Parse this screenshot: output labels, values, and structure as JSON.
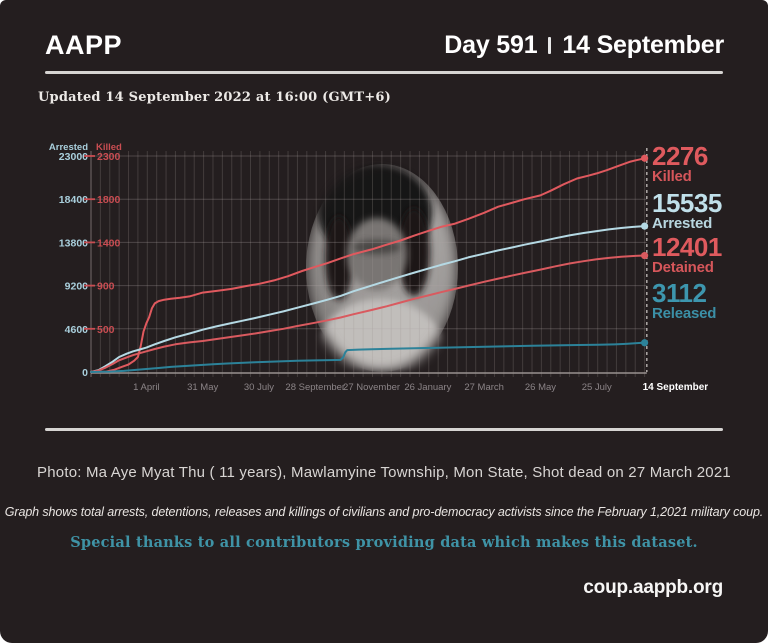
{
  "header": {
    "brand": "AAPP",
    "day_label": "Day 591",
    "date_label": "14 September"
  },
  "updated_line": "Updated 14 September 2022 at 16:00 (GMT+6)",
  "chart_data": {
    "type": "line",
    "title": "",
    "x_axis": {
      "unit": "days since 1 February 2021 military coup",
      "range_days": [
        0,
        590
      ],
      "grid_interval_days": 10,
      "ticks": [
        {
          "day": 59,
          "label": "1 April"
        },
        {
          "day": 119,
          "label": "31 May"
        },
        {
          "day": 179,
          "label": "30 July"
        },
        {
          "day": 239,
          "label": "28 September"
        },
        {
          "day": 299,
          "label": "27 November"
        },
        {
          "day": 359,
          "label": "26 January"
        },
        {
          "day": 419,
          "label": "27 March"
        },
        {
          "day": 479,
          "label": "26 May"
        },
        {
          "day": 539,
          "label": "25 July"
        },
        {
          "day": 590,
          "label": "14 September",
          "emphasis": true
        }
      ]
    },
    "y_left": {
      "title": "Arrested",
      "max": 23000,
      "color": "#a9cfdc",
      "ticks": [
        {
          "v": 0,
          "label": "0"
        },
        {
          "v": 4600,
          "label": "4600"
        },
        {
          "v": 9200,
          "label": "9200"
        },
        {
          "v": 13800,
          "label": "13800"
        },
        {
          "v": 18400,
          "label": "18400"
        },
        {
          "v": 23000,
          "label": "23000"
        }
      ]
    },
    "y_right": {
      "title": "Killed",
      "max": 2300,
      "color": "#c94d52",
      "ticks": [
        {
          "v": 460,
          "label": "500"
        },
        {
          "v": 920,
          "label": "900"
        },
        {
          "v": 1380,
          "label": "1400"
        },
        {
          "v": 1840,
          "label": "1800"
        },
        {
          "v": 2300,
          "label": "2300"
        }
      ]
    },
    "series": [
      {
        "name": "Killed",
        "axis": "right",
        "color": "#e0595e",
        "end_value": 2276,
        "points": [
          [
            0,
            0
          ],
          [
            15,
            2
          ],
          [
            25,
            25
          ],
          [
            33,
            55
          ],
          [
            40,
            80
          ],
          [
            46,
            120
          ],
          [
            50,
            160
          ],
          [
            53,
            275
          ],
          [
            56,
            430
          ],
          [
            59,
            520
          ],
          [
            62,
            585
          ],
          [
            65,
            680
          ],
          [
            68,
            730
          ],
          [
            72,
            755
          ],
          [
            78,
            770
          ],
          [
            85,
            780
          ],
          [
            95,
            790
          ],
          [
            105,
            805
          ],
          [
            119,
            845
          ],
          [
            135,
            865
          ],
          [
            150,
            885
          ],
          [
            165,
            915
          ],
          [
            180,
            940
          ],
          [
            195,
            975
          ],
          [
            210,
            1020
          ],
          [
            225,
            1075
          ],
          [
            239,
            1120
          ],
          [
            252,
            1160
          ],
          [
            266,
            1210
          ],
          [
            280,
            1255
          ],
          [
            299,
            1305
          ],
          [
            315,
            1355
          ],
          [
            330,
            1400
          ],
          [
            345,
            1455
          ],
          [
            359,
            1500
          ],
          [
            373,
            1545
          ],
          [
            388,
            1580
          ],
          [
            402,
            1630
          ],
          [
            419,
            1695
          ],
          [
            434,
            1760
          ],
          [
            448,
            1800
          ],
          [
            462,
            1840
          ],
          [
            479,
            1880
          ],
          [
            490,
            1930
          ],
          [
            504,
            2000
          ],
          [
            518,
            2060
          ],
          [
            530,
            2090
          ],
          [
            539,
            2115
          ],
          [
            550,
            2150
          ],
          [
            562,
            2195
          ],
          [
            575,
            2240
          ],
          [
            583,
            2260
          ],
          [
            590,
            2276
          ]
        ]
      },
      {
        "name": "Arrested",
        "axis": "left",
        "color": "#b5d9e4",
        "end_value": 15535,
        "points": [
          [
            0,
            0
          ],
          [
            8,
            200
          ],
          [
            15,
            600
          ],
          [
            23,
            1100
          ],
          [
            30,
            1600
          ],
          [
            38,
            1950
          ],
          [
            45,
            2200
          ],
          [
            52,
            2400
          ],
          [
            59,
            2600
          ],
          [
            68,
            2950
          ],
          [
            78,
            3300
          ],
          [
            90,
            3700
          ],
          [
            105,
            4100
          ],
          [
            119,
            4500
          ],
          [
            133,
            4850
          ],
          [
            147,
            5150
          ],
          [
            161,
            5450
          ],
          [
            175,
            5750
          ],
          [
            190,
            6100
          ],
          [
            205,
            6450
          ],
          [
            220,
            6850
          ],
          [
            239,
            7350
          ],
          [
            252,
            7700
          ],
          [
            266,
            8100
          ],
          [
            280,
            8600
          ],
          [
            299,
            9200
          ],
          [
            315,
            9700
          ],
          [
            330,
            10150
          ],
          [
            345,
            10600
          ],
          [
            359,
            11000
          ],
          [
            373,
            11400
          ],
          [
            388,
            11800
          ],
          [
            402,
            12200
          ],
          [
            419,
            12600
          ],
          [
            434,
            12950
          ],
          [
            448,
            13250
          ],
          [
            462,
            13550
          ],
          [
            479,
            13900
          ],
          [
            495,
            14250
          ],
          [
            510,
            14550
          ],
          [
            525,
            14800
          ],
          [
            539,
            15000
          ],
          [
            552,
            15180
          ],
          [
            565,
            15330
          ],
          [
            578,
            15450
          ],
          [
            590,
            15535
          ]
        ]
      },
      {
        "name": "Detained",
        "axis": "left",
        "color": "#d95a5f",
        "end_value": 12401,
        "points": [
          [
            0,
            0
          ],
          [
            8,
            150
          ],
          [
            15,
            450
          ],
          [
            23,
            850
          ],
          [
            30,
            1250
          ],
          [
            38,
            1550
          ],
          [
            45,
            1800
          ],
          [
            52,
            2000
          ],
          [
            59,
            2200
          ],
          [
            68,
            2450
          ],
          [
            78,
            2700
          ],
          [
            90,
            2950
          ],
          [
            105,
            3150
          ],
          [
            119,
            3300
          ],
          [
            133,
            3500
          ],
          [
            147,
            3700
          ],
          [
            161,
            3900
          ],
          [
            175,
            4100
          ],
          [
            190,
            4350
          ],
          [
            205,
            4600
          ],
          [
            220,
            4900
          ],
          [
            239,
            5250
          ],
          [
            252,
            5500
          ],
          [
            266,
            5800
          ],
          [
            280,
            6150
          ],
          [
            299,
            6600
          ],
          [
            315,
            7000
          ],
          [
            330,
            7400
          ],
          [
            345,
            7800
          ],
          [
            359,
            8150
          ],
          [
            373,
            8500
          ],
          [
            388,
            8850
          ],
          [
            402,
            9200
          ],
          [
            419,
            9600
          ],
          [
            434,
            9950
          ],
          [
            448,
            10250
          ],
          [
            462,
            10550
          ],
          [
            479,
            10900
          ],
          [
            495,
            11250
          ],
          [
            510,
            11550
          ],
          [
            525,
            11800
          ],
          [
            539,
            12000
          ],
          [
            552,
            12150
          ],
          [
            565,
            12270
          ],
          [
            578,
            12350
          ],
          [
            590,
            12401
          ]
        ]
      },
      {
        "name": "Released",
        "axis": "left",
        "color": "#2c8299",
        "end_value": 3112,
        "points": [
          [
            0,
            0
          ],
          [
            20,
            40
          ],
          [
            35,
            120
          ],
          [
            48,
            220
          ],
          [
            59,
            320
          ],
          [
            72,
            430
          ],
          [
            85,
            540
          ],
          [
            100,
            640
          ],
          [
            115,
            730
          ],
          [
            130,
            820
          ],
          [
            145,
            900
          ],
          [
            160,
            970
          ],
          [
            175,
            1030
          ],
          [
            190,
            1090
          ],
          [
            205,
            1140
          ],
          [
            220,
            1190
          ],
          [
            239,
            1240
          ],
          [
            255,
            1270
          ],
          [
            266,
            1290
          ],
          [
            269,
            1600
          ],
          [
            271,
            2100
          ],
          [
            273,
            2330
          ],
          [
            285,
            2380
          ],
          [
            299,
            2420
          ],
          [
            320,
            2470
          ],
          [
            345,
            2520
          ],
          [
            370,
            2580
          ],
          [
            395,
            2640
          ],
          [
            420,
            2690
          ],
          [
            445,
            2740
          ],
          [
            470,
            2790
          ],
          [
            495,
            2830
          ],
          [
            520,
            2870
          ],
          [
            540,
            2900
          ],
          [
            558,
            2940
          ],
          [
            570,
            2990
          ],
          [
            580,
            3060
          ],
          [
            586,
            3100
          ],
          [
            590,
            3112
          ]
        ]
      }
    ],
    "annotations": [
      {
        "value": "2276",
        "label": "Killed",
        "color": "#df5a5e"
      },
      {
        "value": "15535",
        "label": "Arrested",
        "color": "#c0e0ea"
      },
      {
        "value": "12401",
        "label": "Detained",
        "color": "#df5a5e"
      },
      {
        "value": "3112",
        "label": "Released",
        "color": "#3d96ae"
      }
    ],
    "grid": true,
    "legend_position": "right-annotations"
  },
  "footer": {
    "photo_caption": "Photo: Ma Aye Myat Thu ( 11 years), Mawlamyine Township, Mon State, Shot dead on 27 March 2021",
    "graph_note": "Graph shows total arrests, detentions, releases and killings of civilians and pro-democracy activists since the February 1,2021 military coup.",
    "thanks": "Special thanks to all contributors providing data which makes this dataset.",
    "site_url": "coup.aappb.org"
  },
  "colors": {
    "background": "#241e1f",
    "rule": "#d6d4d2",
    "red": "#e0595e",
    "pale_blue": "#b5d9e4",
    "teal": "#2c8299"
  }
}
